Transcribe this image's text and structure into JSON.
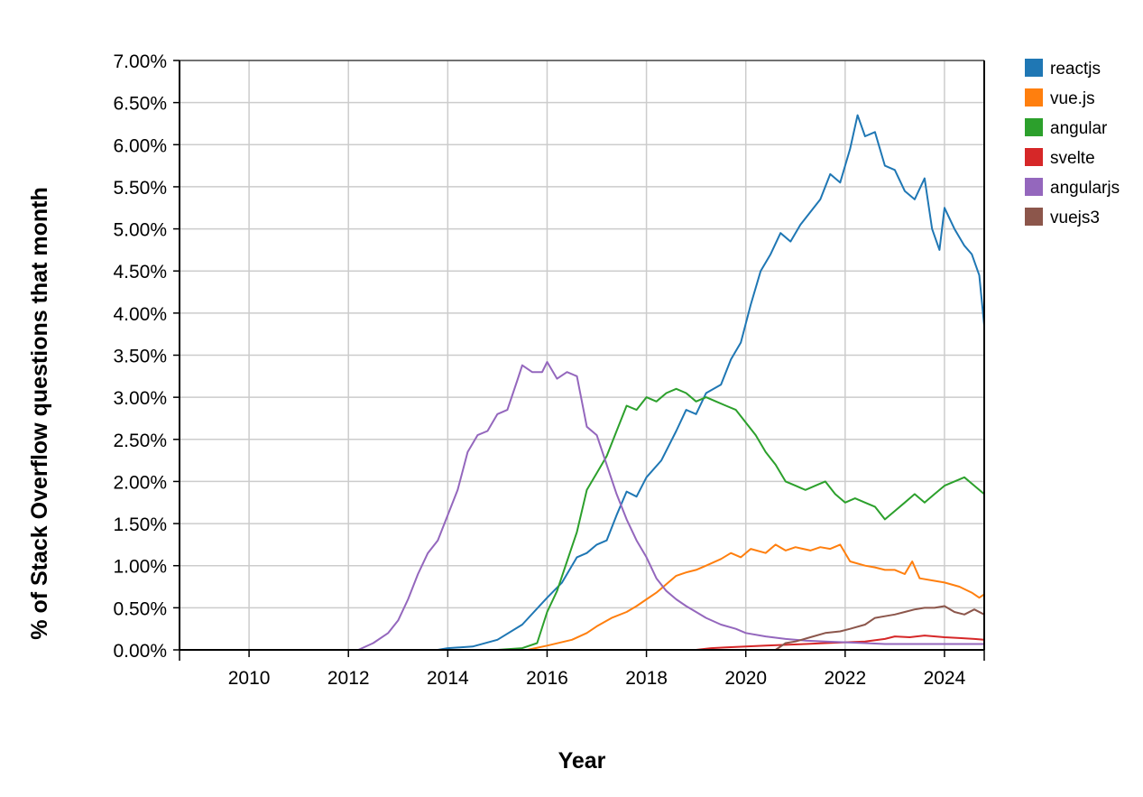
{
  "chart_data": {
    "type": "line",
    "xlabel": "Year",
    "ylabel": "% of Stack Overflow questions that month",
    "xlim": [
      2008.6,
      2024.8
    ],
    "ylim": [
      0,
      7
    ],
    "x_ticks": [
      2010,
      2012,
      2014,
      2016,
      2018,
      2020,
      2022,
      2024
    ],
    "y_ticks": [
      "0.00%",
      "0.50%",
      "1.00%",
      "1.50%",
      "2.00%",
      "2.50%",
      "3.00%",
      "3.50%",
      "4.00%",
      "4.50%",
      "5.00%",
      "5.50%",
      "6.00%",
      "6.50%",
      "7.00%"
    ],
    "grid": true,
    "legend_position": "right",
    "series": [
      {
        "name": "reactjs",
        "color": "#1f77b4",
        "points": [
          [
            2008.6,
            0
          ],
          [
            2013.8,
            0
          ],
          [
            2014.0,
            0.02
          ],
          [
            2014.5,
            0.04
          ],
          [
            2015.0,
            0.12
          ],
          [
            2015.5,
            0.3
          ],
          [
            2016.0,
            0.62
          ],
          [
            2016.3,
            0.8
          ],
          [
            2016.6,
            1.1
          ],
          [
            2016.8,
            1.15
          ],
          [
            2017.0,
            1.25
          ],
          [
            2017.2,
            1.3
          ],
          [
            2017.4,
            1.6
          ],
          [
            2017.6,
            1.88
          ],
          [
            2017.8,
            1.82
          ],
          [
            2018.0,
            2.05
          ],
          [
            2018.3,
            2.25
          ],
          [
            2018.6,
            2.6
          ],
          [
            2018.8,
            2.85
          ],
          [
            2019.0,
            2.8
          ],
          [
            2019.2,
            3.05
          ],
          [
            2019.5,
            3.15
          ],
          [
            2019.7,
            3.45
          ],
          [
            2019.9,
            3.65
          ],
          [
            2020.1,
            4.1
          ],
          [
            2020.3,
            4.5
          ],
          [
            2020.5,
            4.7
          ],
          [
            2020.7,
            4.95
          ],
          [
            2020.9,
            4.85
          ],
          [
            2021.1,
            5.05
          ],
          [
            2021.3,
            5.2
          ],
          [
            2021.5,
            5.35
          ],
          [
            2021.7,
            5.65
          ],
          [
            2021.9,
            5.55
          ],
          [
            2022.1,
            5.95
          ],
          [
            2022.25,
            6.35
          ],
          [
            2022.4,
            6.1
          ],
          [
            2022.6,
            6.15
          ],
          [
            2022.8,
            5.75
          ],
          [
            2023.0,
            5.7
          ],
          [
            2023.2,
            5.45
          ],
          [
            2023.4,
            5.35
          ],
          [
            2023.6,
            5.6
          ],
          [
            2023.75,
            5.0
          ],
          [
            2023.9,
            4.75
          ],
          [
            2024.0,
            5.25
          ],
          [
            2024.2,
            5.0
          ],
          [
            2024.4,
            4.8
          ],
          [
            2024.55,
            4.7
          ],
          [
            2024.7,
            4.45
          ],
          [
            2024.8,
            3.85
          ]
        ]
      },
      {
        "name": "vue.js",
        "color": "#ff7f0e",
        "points": [
          [
            2008.6,
            0
          ],
          [
            2015.6,
            0
          ],
          [
            2016.0,
            0.05
          ],
          [
            2016.5,
            0.12
          ],
          [
            2016.8,
            0.2
          ],
          [
            2017.0,
            0.28
          ],
          [
            2017.3,
            0.38
          ],
          [
            2017.6,
            0.45
          ],
          [
            2017.8,
            0.52
          ],
          [
            2018.0,
            0.6
          ],
          [
            2018.2,
            0.68
          ],
          [
            2018.4,
            0.78
          ],
          [
            2018.6,
            0.88
          ],
          [
            2018.8,
            0.92
          ],
          [
            2019.0,
            0.95
          ],
          [
            2019.2,
            1.0
          ],
          [
            2019.5,
            1.08
          ],
          [
            2019.7,
            1.15
          ],
          [
            2019.9,
            1.1
          ],
          [
            2020.1,
            1.2
          ],
          [
            2020.4,
            1.15
          ],
          [
            2020.6,
            1.25
          ],
          [
            2020.8,
            1.18
          ],
          [
            2021.0,
            1.22
          ],
          [
            2021.3,
            1.18
          ],
          [
            2021.5,
            1.22
          ],
          [
            2021.7,
            1.2
          ],
          [
            2021.9,
            1.25
          ],
          [
            2022.1,
            1.05
          ],
          [
            2022.4,
            1.0
          ],
          [
            2022.6,
            0.98
          ],
          [
            2022.8,
            0.95
          ],
          [
            2023.0,
            0.95
          ],
          [
            2023.2,
            0.9
          ],
          [
            2023.35,
            1.05
          ],
          [
            2023.5,
            0.85
          ],
          [
            2023.8,
            0.82
          ],
          [
            2024.0,
            0.8
          ],
          [
            2024.3,
            0.75
          ],
          [
            2024.55,
            0.68
          ],
          [
            2024.7,
            0.62
          ],
          [
            2024.8,
            0.66
          ]
        ]
      },
      {
        "name": "angular",
        "color": "#2ca02c",
        "points": [
          [
            2008.6,
            0
          ],
          [
            2015.0,
            0
          ],
          [
            2015.5,
            0.02
          ],
          [
            2015.8,
            0.08
          ],
          [
            2016.0,
            0.45
          ],
          [
            2016.2,
            0.7
          ],
          [
            2016.4,
            1.05
          ],
          [
            2016.6,
            1.4
          ],
          [
            2016.8,
            1.9
          ],
          [
            2017.0,
            2.1
          ],
          [
            2017.2,
            2.3
          ],
          [
            2017.4,
            2.6
          ],
          [
            2017.6,
            2.9
          ],
          [
            2017.8,
            2.85
          ],
          [
            2018.0,
            3.0
          ],
          [
            2018.2,
            2.95
          ],
          [
            2018.4,
            3.05
          ],
          [
            2018.6,
            3.1
          ],
          [
            2018.8,
            3.05
          ],
          [
            2019.0,
            2.95
          ],
          [
            2019.2,
            3.0
          ],
          [
            2019.4,
            2.95
          ],
          [
            2019.6,
            2.9
          ],
          [
            2019.8,
            2.85
          ],
          [
            2020.0,
            2.7
          ],
          [
            2020.2,
            2.55
          ],
          [
            2020.4,
            2.35
          ],
          [
            2020.6,
            2.2
          ],
          [
            2020.8,
            2.0
          ],
          [
            2021.0,
            1.95
          ],
          [
            2021.2,
            1.9
          ],
          [
            2021.4,
            1.95
          ],
          [
            2021.6,
            2.0
          ],
          [
            2021.8,
            1.85
          ],
          [
            2022.0,
            1.75
          ],
          [
            2022.2,
            1.8
          ],
          [
            2022.4,
            1.75
          ],
          [
            2022.6,
            1.7
          ],
          [
            2022.8,
            1.55
          ],
          [
            2023.0,
            1.65
          ],
          [
            2023.2,
            1.75
          ],
          [
            2023.4,
            1.85
          ],
          [
            2023.6,
            1.75
          ],
          [
            2023.8,
            1.85
          ],
          [
            2024.0,
            1.95
          ],
          [
            2024.2,
            2.0
          ],
          [
            2024.4,
            2.05
          ],
          [
            2024.6,
            1.95
          ],
          [
            2024.8,
            1.85
          ]
        ]
      },
      {
        "name": "svelte",
        "color": "#d62728",
        "points": [
          [
            2008.6,
            0
          ],
          [
            2019.0,
            0
          ],
          [
            2019.3,
            0.02
          ],
          [
            2019.6,
            0.03
          ],
          [
            2020.0,
            0.04
          ],
          [
            2020.4,
            0.05
          ],
          [
            2020.8,
            0.06
          ],
          [
            2021.2,
            0.07
          ],
          [
            2021.6,
            0.08
          ],
          [
            2022.0,
            0.09
          ],
          [
            2022.4,
            0.1
          ],
          [
            2022.8,
            0.13
          ],
          [
            2023.0,
            0.16
          ],
          [
            2023.3,
            0.15
          ],
          [
            2023.6,
            0.17
          ],
          [
            2024.0,
            0.15
          ],
          [
            2024.3,
            0.14
          ],
          [
            2024.6,
            0.13
          ],
          [
            2024.8,
            0.12
          ]
        ]
      },
      {
        "name": "angularjs",
        "color": "#9467bd",
        "points": [
          [
            2008.6,
            0
          ],
          [
            2012.2,
            0
          ],
          [
            2012.5,
            0.08
          ],
          [
            2012.8,
            0.2
          ],
          [
            2013.0,
            0.35
          ],
          [
            2013.2,
            0.6
          ],
          [
            2013.4,
            0.9
          ],
          [
            2013.6,
            1.15
          ],
          [
            2013.8,
            1.3
          ],
          [
            2014.0,
            1.6
          ],
          [
            2014.2,
            1.9
          ],
          [
            2014.4,
            2.35
          ],
          [
            2014.6,
            2.55
          ],
          [
            2014.8,
            2.6
          ],
          [
            2015.0,
            2.8
          ],
          [
            2015.2,
            2.85
          ],
          [
            2015.4,
            3.2
          ],
          [
            2015.5,
            3.38
          ],
          [
            2015.7,
            3.3
          ],
          [
            2015.9,
            3.3
          ],
          [
            2016.0,
            3.42
          ],
          [
            2016.2,
            3.22
          ],
          [
            2016.4,
            3.3
          ],
          [
            2016.6,
            3.25
          ],
          [
            2016.8,
            2.65
          ],
          [
            2017.0,
            2.55
          ],
          [
            2017.2,
            2.2
          ],
          [
            2017.4,
            1.85
          ],
          [
            2017.6,
            1.55
          ],
          [
            2017.8,
            1.3
          ],
          [
            2018.0,
            1.1
          ],
          [
            2018.2,
            0.85
          ],
          [
            2018.4,
            0.7
          ],
          [
            2018.6,
            0.6
          ],
          [
            2018.8,
            0.52
          ],
          [
            2019.0,
            0.45
          ],
          [
            2019.2,
            0.38
          ],
          [
            2019.5,
            0.3
          ],
          [
            2019.8,
            0.25
          ],
          [
            2020.0,
            0.2
          ],
          [
            2020.4,
            0.16
          ],
          [
            2020.8,
            0.13
          ],
          [
            2021.2,
            0.11
          ],
          [
            2021.6,
            0.1
          ],
          [
            2022.0,
            0.09
          ],
          [
            2022.4,
            0.08
          ],
          [
            2022.8,
            0.07
          ],
          [
            2023.2,
            0.07
          ],
          [
            2023.6,
            0.07
          ],
          [
            2024.0,
            0.07
          ],
          [
            2024.4,
            0.07
          ],
          [
            2024.8,
            0.07
          ]
        ]
      },
      {
        "name": "vuejs3",
        "color": "#8c564b",
        "points": [
          [
            2008.6,
            0
          ],
          [
            2020.6,
            0
          ],
          [
            2020.8,
            0.08
          ],
          [
            2021.0,
            0.1
          ],
          [
            2021.3,
            0.15
          ],
          [
            2021.6,
            0.2
          ],
          [
            2021.9,
            0.22
          ],
          [
            2022.1,
            0.25
          ],
          [
            2022.4,
            0.3
          ],
          [
            2022.6,
            0.38
          ],
          [
            2022.8,
            0.4
          ],
          [
            2023.0,
            0.42
          ],
          [
            2023.2,
            0.45
          ],
          [
            2023.4,
            0.48
          ],
          [
            2023.6,
            0.5
          ],
          [
            2023.8,
            0.5
          ],
          [
            2024.0,
            0.52
          ],
          [
            2024.2,
            0.45
          ],
          [
            2024.4,
            0.42
          ],
          [
            2024.6,
            0.48
          ],
          [
            2024.8,
            0.42
          ]
        ]
      }
    ]
  }
}
